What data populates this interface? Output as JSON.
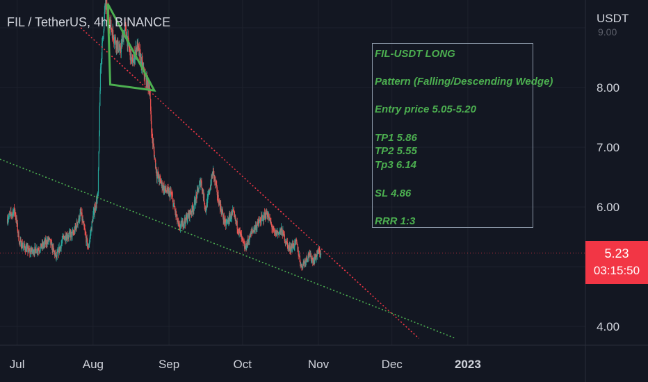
{
  "header": {
    "title": "FIL / TetherUS, 4h, BINANCE"
  },
  "price_scale": {
    "currency": "USDT",
    "partial_tick": "9.00"
  },
  "last_price": {
    "value": "5.23",
    "countdown": "03:15:50",
    "color": "#f23645"
  },
  "annotation": {
    "lines": [
      "FIL-USDT LONG",
      "Pattern (Falling/Descending Wedge)",
      "Entry price 5.05-5.20",
      "TP1 5.86",
      "TP2 5.55",
      "Tp3  6.14",
      "SL 4.86",
      "RRR 1:3"
    ],
    "color": "#4caf50"
  },
  "colors": {
    "background": "#131722",
    "up": "#26a69a",
    "down": "#ef5350",
    "text": "#d1d4dc",
    "resistance": "#f23645",
    "support": "#4caf50",
    "pennant": "#4caf50"
  },
  "chart_data": {
    "type": "candlestick",
    "title": "FIL / TetherUS, 4h, BINANCE",
    "y_axis": {
      "unit": "USDT",
      "ticks": [
        4.0,
        6.0,
        7.0,
        8.0
      ]
    },
    "x_axis": {
      "ticks": [
        "Jul",
        "Aug",
        "Sep",
        "Oct",
        "Nov",
        "Dec",
        "2023"
      ]
    },
    "ylim": [
      3.7,
      9.4
    ],
    "xlim": [
      "2022-06-24",
      "2023-02-18"
    ],
    "last_price": 5.23,
    "series": [
      {
        "kind": "price_path",
        "points": [
          [
            "2022-06-27",
            5.8
          ],
          [
            "2022-06-30",
            5.95
          ],
          [
            "2022-07-02",
            5.4
          ],
          [
            "2022-07-06",
            5.25
          ],
          [
            "2022-07-10",
            5.3
          ],
          [
            "2022-07-14",
            5.45
          ],
          [
            "2022-07-17",
            5.15
          ],
          [
            "2022-07-20",
            5.5
          ],
          [
            "2022-07-24",
            5.55
          ],
          [
            "2022-07-27",
            5.9
          ],
          [
            "2022-07-30",
            5.3
          ],
          [
            "2022-08-01",
            5.85
          ],
          [
            "2022-08-03",
            6.2
          ],
          [
            "2022-08-04",
            8.3
          ],
          [
            "2022-08-06",
            9.4
          ],
          [
            "2022-08-09",
            8.9
          ],
          [
            "2022-08-12",
            8.6
          ],
          [
            "2022-08-14",
            9.0
          ],
          [
            "2022-08-17",
            8.4
          ],
          [
            "2022-08-19",
            8.7
          ],
          [
            "2022-08-22",
            8.2
          ],
          [
            "2022-08-24",
            8.0
          ],
          [
            "2022-08-25",
            7.2
          ],
          [
            "2022-08-27",
            6.55
          ],
          [
            "2022-08-30",
            6.3
          ],
          [
            "2022-09-02",
            6.2
          ],
          [
            "2022-09-05",
            5.65
          ],
          [
            "2022-09-08",
            5.8
          ],
          [
            "2022-09-11",
            6.0
          ],
          [
            "2022-09-14",
            6.45
          ],
          [
            "2022-09-16",
            5.95
          ],
          [
            "2022-09-19",
            6.6
          ],
          [
            "2022-09-21",
            6.15
          ],
          [
            "2022-09-24",
            5.7
          ],
          [
            "2022-09-27",
            5.9
          ],
          [
            "2022-09-30",
            5.55
          ],
          [
            "2022-10-02",
            5.3
          ],
          [
            "2022-10-05",
            5.6
          ],
          [
            "2022-10-08",
            5.75
          ],
          [
            "2022-10-11",
            5.9
          ],
          [
            "2022-10-14",
            5.55
          ],
          [
            "2022-10-17",
            5.6
          ],
          [
            "2022-10-20",
            5.3
          ],
          [
            "2022-10-23",
            5.4
          ],
          [
            "2022-10-25",
            5.0
          ],
          [
            "2022-10-28",
            5.2
          ],
          [
            "2022-10-30",
            5.1
          ],
          [
            "2022-11-01",
            5.25
          ],
          [
            "2022-11-02",
            5.23
          ]
        ]
      },
      {
        "name": "resistance",
        "kind": "line",
        "style": "dotted",
        "x": [
          "2022-07-27",
          "2022-12-12"
        ],
        "y": [
          9.0,
          3.8
        ]
      },
      {
        "name": "support",
        "kind": "line",
        "style": "dotted",
        "x": [
          "2022-06-24",
          "2022-12-27"
        ],
        "y": [
          6.8,
          3.8
        ]
      },
      {
        "name": "pennant",
        "kind": "triangle",
        "x": [
          "2022-08-07",
          "2022-08-26",
          "2022-08-08"
        ],
        "y": [
          9.4,
          7.95,
          8.05
        ]
      }
    ]
  }
}
